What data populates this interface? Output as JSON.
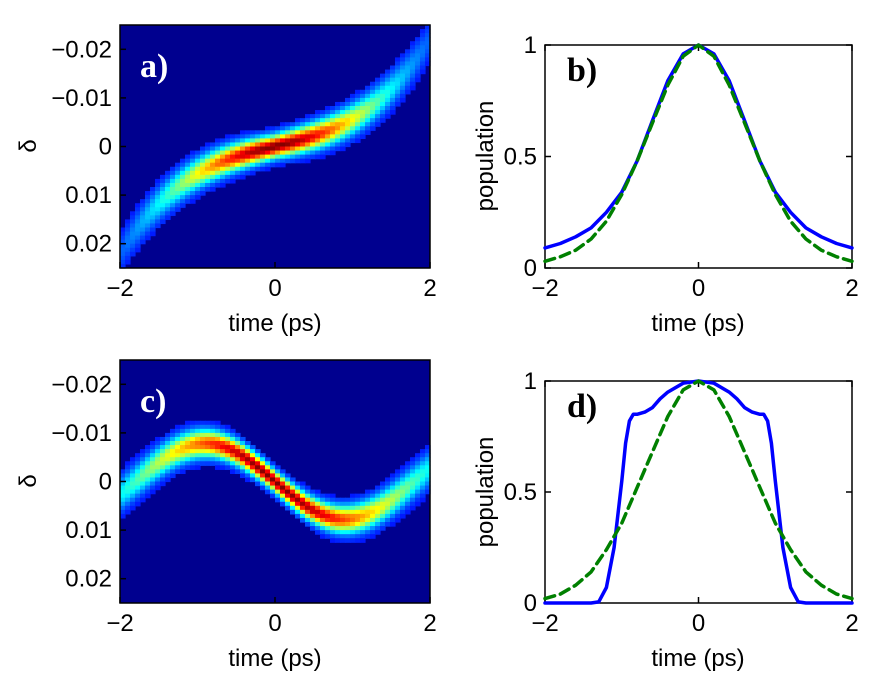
{
  "chart_data": [
    {
      "id": "a",
      "type": "heatmap",
      "panel_label": "a)",
      "xlabel": "time (ps)",
      "ylabel": "δ",
      "xlim": [
        -2,
        2
      ],
      "ylim": [
        -0.025,
        0.025
      ],
      "y_reversed": true,
      "xticks": [
        -2,
        0,
        2
      ],
      "xtick_labels": [
        "−2",
        "0",
        "2"
      ],
      "yticks": [
        -0.02,
        -0.01,
        0,
        0.01,
        0.02
      ],
      "ytick_labels": [
        "−0.02",
        "−0.01",
        "0",
        "0.01",
        "0.02"
      ],
      "background_color": "#00008f",
      "label_color": "#ffffff",
      "ridge": {
        "delta_at_center": 0.0,
        "cubic_coeff": -0.0018,
        "linear_coeff": -0.0038,
        "time_width": 0.75,
        "delta_width": 0.0022
      }
    },
    {
      "id": "b",
      "type": "line",
      "panel_label": "b)",
      "xlabel": "time (ps)",
      "ylabel": "population",
      "xlim": [
        -2,
        2
      ],
      "ylim": [
        0,
        1
      ],
      "xticks": [
        -2,
        0,
        2
      ],
      "xtick_labels": [
        "−2",
        "0",
        "2"
      ],
      "yticks": [
        0,
        0.5,
        1
      ],
      "ytick_labels": [
        "0",
        "0.5",
        "1"
      ],
      "label_color": "#000000",
      "series": [
        {
          "name": "solid",
          "color": "#0000ff",
          "style": "solid",
          "x": [
            -2,
            -1.8,
            -1.6,
            -1.4,
            -1.2,
            -1.0,
            -0.8,
            -0.6,
            -0.4,
            -0.2,
            0,
            0.2,
            0.4,
            0.6,
            0.8,
            1.0,
            1.2,
            1.4,
            1.6,
            1.8,
            2
          ],
          "y": [
            0.09,
            0.11,
            0.14,
            0.18,
            0.25,
            0.34,
            0.48,
            0.66,
            0.84,
            0.96,
            1.0,
            0.96,
            0.84,
            0.66,
            0.48,
            0.34,
            0.25,
            0.18,
            0.14,
            0.11,
            0.09
          ]
        },
        {
          "name": "dashed",
          "color": "#008000",
          "style": "dashed",
          "x": [
            -2,
            -1.8,
            -1.6,
            -1.4,
            -1.2,
            -1.0,
            -0.8,
            -0.6,
            -0.4,
            -0.2,
            0,
            0.2,
            0.4,
            0.6,
            0.8,
            1.0,
            1.2,
            1.4,
            1.6,
            1.8,
            2
          ],
          "y": [
            0.03,
            0.05,
            0.08,
            0.13,
            0.21,
            0.33,
            0.48,
            0.65,
            0.82,
            0.95,
            1.0,
            0.95,
            0.82,
            0.65,
            0.48,
            0.33,
            0.21,
            0.13,
            0.08,
            0.05,
            0.03
          ]
        }
      ]
    },
    {
      "id": "c",
      "type": "heatmap",
      "panel_label": "c)",
      "xlabel": "time (ps)",
      "ylabel": "δ",
      "xlim": [
        -2,
        2
      ],
      "ylim": [
        -0.025,
        0.025
      ],
      "y_reversed": true,
      "xticks": [
        -2,
        0,
        2
      ],
      "xtick_labels": [
        "−2",
        "0",
        "2"
      ],
      "yticks": [
        -0.02,
        -0.01,
        0,
        0.01,
        0.02
      ],
      "ytick_labels": [
        "−0.02",
        "−0.01",
        "0",
        "0.01",
        "0.02"
      ],
      "background_color": "#00008f",
      "label_color": "#ffffff",
      "ridge": {
        "delta_at_center": 0.0,
        "sine_amplitude": 0.0078,
        "sine_period": 3.6,
        "time_width": 1.0,
        "delta_width": 0.002
      }
    },
    {
      "id": "d",
      "type": "line",
      "panel_label": "d)",
      "xlabel": "time (ps)",
      "ylabel": "population",
      "xlim": [
        -2,
        2
      ],
      "ylim": [
        0,
        1
      ],
      "xticks": [
        -2,
        0,
        2
      ],
      "xtick_labels": [
        "−2",
        "0",
        "2"
      ],
      "yticks": [
        0,
        0.5,
        1
      ],
      "ytick_labels": [
        "0",
        "0.5",
        "1"
      ],
      "label_color": "#000000",
      "series": [
        {
          "name": "solid",
          "color": "#0000ff",
          "style": "solid",
          "x": [
            -2,
            -1.4,
            -1.3,
            -1.2,
            -1.1,
            -1.0,
            -0.95,
            -0.9,
            -0.85,
            -0.8,
            -0.7,
            -0.6,
            -0.5,
            -0.4,
            -0.2,
            0,
            0.2,
            0.4,
            0.5,
            0.6,
            0.7,
            0.8,
            0.85,
            0.9,
            0.95,
            1.0,
            1.1,
            1.2,
            1.3,
            1.4,
            2
          ],
          "y": [
            0,
            0,
            0.005,
            0.07,
            0.25,
            0.55,
            0.72,
            0.82,
            0.85,
            0.85,
            0.86,
            0.88,
            0.92,
            0.95,
            0.99,
            1.0,
            0.99,
            0.95,
            0.92,
            0.88,
            0.86,
            0.85,
            0.85,
            0.82,
            0.72,
            0.55,
            0.25,
            0.07,
            0.005,
            0,
            0
          ]
        },
        {
          "name": "dashed",
          "color": "#008000",
          "style": "dashed",
          "x": [
            -2,
            -1.8,
            -1.6,
            -1.4,
            -1.2,
            -1.0,
            -0.8,
            -0.6,
            -0.4,
            -0.2,
            0,
            0.2,
            0.4,
            0.6,
            0.8,
            1.0,
            1.2,
            1.4,
            1.6,
            1.8,
            2
          ],
          "y": [
            0.02,
            0.04,
            0.08,
            0.14,
            0.24,
            0.36,
            0.52,
            0.68,
            0.84,
            0.96,
            1.0,
            0.96,
            0.84,
            0.68,
            0.52,
            0.36,
            0.24,
            0.14,
            0.08,
            0.04,
            0.02
          ]
        }
      ]
    }
  ]
}
